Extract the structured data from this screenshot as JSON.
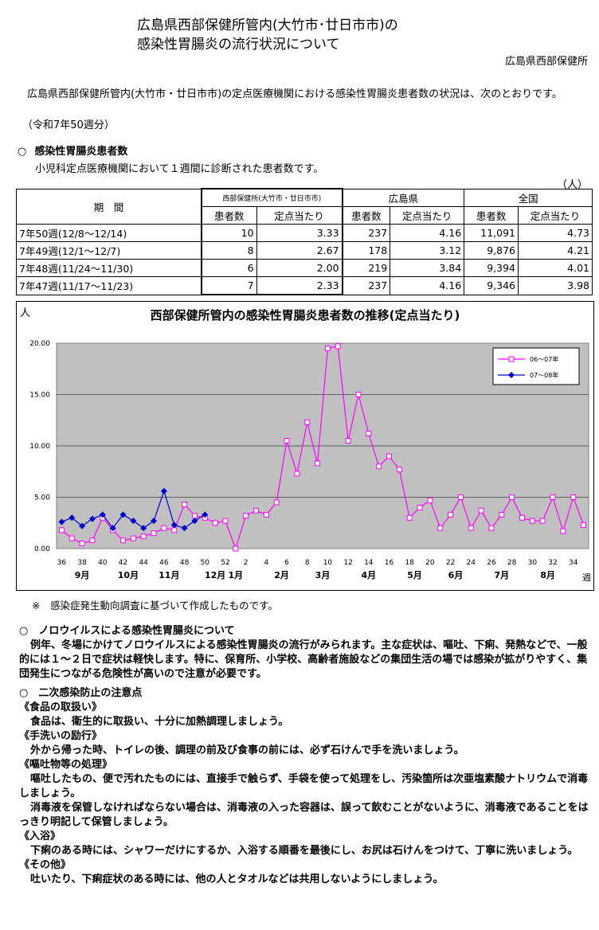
{
  "header": {
    "title_line1": "広島県西部保健所管内(大竹市･廿日市市)の",
    "title_line2": "感染性胃腸炎の流行状況について",
    "organization": "広島県西部保健所"
  },
  "intro": {
    "text": "広島県西部保健所管内(大竹市・廿日市市)の定点医療機関における感染性胃腸炎患者数の状況は、次のとおりです。",
    "period": "（令和7年50週分）"
  },
  "section1": {
    "marker": "○",
    "heading": "感染性胃腸炎患者数",
    "subtext": "小児科定点医療機関において１週間に診断された患者数です。",
    "unit": "（人）"
  },
  "table": {
    "col_period": "期　間",
    "group_west": "西部保健所(大竹市・廿日市市)",
    "group_pref": "広島県",
    "group_nation": "全国",
    "sub_patients": "患者数",
    "sub_per_point": "定点当たり",
    "rows": [
      {
        "period": "7年50週(12/8～12/14)",
        "west_p": "10",
        "west_r": "3.33",
        "pref_p": "237",
        "pref_r": "4.16",
        "nat_p": "11,091",
        "nat_r": "4.73"
      },
      {
        "period": "7年49週(12/1～12/7)",
        "west_p": "8",
        "west_r": "2.67",
        "pref_p": "178",
        "pref_r": "3.12",
        "nat_p": "9,876",
        "nat_r": "4.21"
      },
      {
        "period": "7年48週(11/24～11/30)",
        "west_p": "6",
        "west_r": "2.00",
        "pref_p": "219",
        "pref_r": "3.84",
        "nat_p": "9,394",
        "nat_r": "4.01"
      },
      {
        "period": "7年47週(11/17～11/23)",
        "west_p": "7",
        "west_r": "2.33",
        "pref_p": "237",
        "pref_r": "4.16",
        "nat_p": "9,346",
        "nat_r": "3.98"
      }
    ]
  },
  "chart_data": {
    "type": "line",
    "title": "西部保健所管内の感染性胃腸炎患者数の推移(定点当たり)",
    "ylabel": "人",
    "xlabel": "週",
    "ylim": [
      0,
      20
    ],
    "yticks": [
      "0.00",
      "5.00",
      "10.00",
      "15.00",
      "20.00"
    ],
    "x": [
      36,
      37,
      38,
      39,
      40,
      41,
      42,
      43,
      44,
      45,
      46,
      47,
      48,
      49,
      50,
      51,
      52,
      1,
      2,
      3,
      4,
      5,
      6,
      7,
      8,
      9,
      10,
      11,
      12,
      13,
      14,
      15,
      16,
      17,
      18,
      19,
      20,
      21,
      22,
      23,
      24,
      25,
      26,
      27,
      28,
      29,
      30,
      31,
      32,
      33,
      34,
      35
    ],
    "xtick_labels": [
      "36",
      "38",
      "40",
      "42",
      "44",
      "46",
      "48",
      "50",
      "52",
      "2",
      "4",
      "6",
      "8",
      "10",
      "12",
      "14",
      "16",
      "18",
      "20",
      "22",
      "24",
      "26",
      "28",
      "30",
      "32",
      "34"
    ],
    "month_labels": [
      "9月",
      "10月",
      "11月",
      "12月",
      "1月",
      "2月",
      "3月",
      "4月",
      "5月",
      "6月",
      "7月",
      "8月"
    ],
    "grid": true,
    "plot_background": "#c0c0c0",
    "legend_position": "upper-right",
    "series": [
      {
        "name": "06～07年",
        "color": "#ff00ff",
        "marker": "open-square",
        "values": [
          1.8,
          1.0,
          0.5,
          0.8,
          3.0,
          1.8,
          0.8,
          1.0,
          1.2,
          1.5,
          2.0,
          1.8,
          4.3,
          3.2,
          3.0,
          2.5,
          2.7,
          0.0,
          3.2,
          3.7,
          3.3,
          4.5,
          10.5,
          7.3,
          12.3,
          8.3,
          19.5,
          19.7,
          10.5,
          15.0,
          11.2,
          8.0,
          9.0,
          7.7,
          3.0,
          4.0,
          4.7,
          2.0,
          3.3,
          5.0,
          2.0,
          3.7,
          2.0,
          3.3,
          5.0,
          3.0,
          2.7,
          2.7,
          5.0,
          1.7,
          5.0,
          2.3
        ]
      },
      {
        "name": "07～08年",
        "color": "#0000cc",
        "marker": "filled-diamond",
        "values": [
          2.6,
          3.0,
          2.2,
          2.9,
          3.3,
          2.0,
          3.3,
          2.7,
          2.0,
          2.7,
          5.6,
          2.3,
          2.0,
          2.7,
          3.3
        ]
      }
    ]
  },
  "chart_note": "※　感染症発生動向調査に基づいて作成したものです。",
  "section2": {
    "heading": "○　ノロウイルスによる感染性胃腸炎について",
    "text": "例年、冬場にかけてノロウイルスによる感染性胃腸炎の流行がみられます。主な症状は、嘔吐、下痢、発熱などで、一般的には１～２日で症状は軽快します。特に、保育所、小学校、高齢者施設などの集団生活の場では感染が拡がりやすく、集団発生につながる危険性が高いので注意が必要です。"
  },
  "section3": {
    "heading": "○　二次感染防止の注意点",
    "items": [
      {
        "title": "《食品の取扱い》",
        "texts": [
          "食品は、衛生的に取扱い、十分に加熱調理しましょう。"
        ]
      },
      {
        "title": "《手洗いの励行》",
        "texts": [
          "外から帰った時、トイレの後、調理の前及び食事の前には、必ず石けんで手を洗いましょう。"
        ]
      },
      {
        "title": "《嘔吐物等の処理》",
        "texts": [
          "嘔吐したもの、便で汚れたものには、直接手で触らず、手袋を使って処理をし、汚染箇所は次亜塩素酸ナトリウムで消毒しましょう。",
          "消毒液を保管しなければならない場合は、消毒液の入った容器は、誤って飲むことがないように、消毒液であることをはっきり明記して保管しましょう。"
        ]
      },
      {
        "title": "《入浴》",
        "texts": [
          "下痢のある時には、シャワーだけにするか、入浴する順番を最後にし、お尻は石けんをつけて、丁寧に洗いましょう。"
        ]
      },
      {
        "title": "《その他》",
        "texts": [
          "吐いたり、下痢症状のある時には、他の人とタオルなどは共用しないようにしましょう。"
        ]
      }
    ]
  }
}
